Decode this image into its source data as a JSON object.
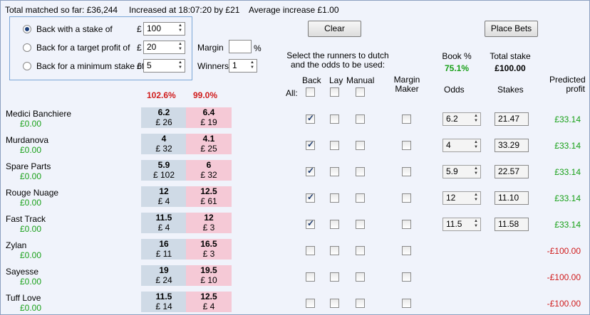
{
  "topbar": {
    "total_matched": "Total matched so far: £36,244",
    "increased": "Increased at 18:07:20 by £21",
    "average": "Average increase £1.00"
  },
  "stake_options": {
    "currency": "£",
    "back_stake": {
      "label": "Back with a stake of",
      "value": "100",
      "selected": true
    },
    "target_profit": {
      "label": "Back for a target profit of",
      "value": "20",
      "selected": false
    },
    "min_stake": {
      "label": "Back for a minimum stake of",
      "value": "5",
      "selected": false
    }
  },
  "margin": {
    "label": "Margin",
    "value": "",
    "unit": "%"
  },
  "winners": {
    "label": "Winners",
    "value": "1"
  },
  "buttons": {
    "clear": "Clear",
    "place_bets": "Place Bets"
  },
  "instructions": {
    "line1": "Select the runners to dutch",
    "line2": "and the odds to be used:"
  },
  "book": {
    "label": "Book %",
    "value": "75.1%"
  },
  "total_stake": {
    "label": "Total stake",
    "value": "£100.00"
  },
  "columns": {
    "all": "All:",
    "back": "Back",
    "lay": "Lay",
    "manual": "Manual",
    "margin_maker_1": "Margin",
    "margin_maker_2": "Maker",
    "odds": "Odds",
    "stakes": "Stakes",
    "predicted_1": "Predicted",
    "predicted_2": "profit"
  },
  "book_percent": {
    "back": "102.6%",
    "lay": "99.0%"
  },
  "runners": [
    {
      "name": "Medici Banchiere",
      "pl": "£0.00",
      "back_odds": "6.2",
      "back_size": "£ 26",
      "lay_odds": "6.4",
      "lay_size": "£ 19",
      "back_checked": true,
      "odds": "6.2",
      "stake": "21.47",
      "profit": "£33.14",
      "positive": true
    },
    {
      "name": "Murdanova",
      "pl": "£0.00",
      "back_odds": "4",
      "back_size": "£ 32",
      "lay_odds": "4.1",
      "lay_size": "£ 25",
      "back_checked": true,
      "odds": "4",
      "stake": "33.29",
      "profit": "£33.14",
      "positive": true
    },
    {
      "name": "Spare Parts",
      "pl": "£0.00",
      "back_odds": "5.9",
      "back_size": "£ 102",
      "lay_odds": "6",
      "lay_size": "£ 32",
      "back_checked": true,
      "odds": "5.9",
      "stake": "22.57",
      "profit": "£33.14",
      "positive": true
    },
    {
      "name": "Rouge Nuage",
      "pl": "£0.00",
      "back_odds": "12",
      "back_size": "£ 4",
      "lay_odds": "12.5",
      "lay_size": "£ 61",
      "back_checked": true,
      "odds": "12",
      "stake": "11.10",
      "profit": "£33.14",
      "positive": true
    },
    {
      "name": "Fast Track",
      "pl": "£0.00",
      "back_odds": "11.5",
      "back_size": "£ 4",
      "lay_odds": "12",
      "lay_size": "£ 3",
      "back_checked": true,
      "odds": "11.5",
      "stake": "11.58",
      "profit": "£33.14",
      "positive": true
    },
    {
      "name": "Zylan",
      "pl": "£0.00",
      "back_odds": "16",
      "back_size": "£ 11",
      "lay_odds": "16.5",
      "lay_size": "£ 3",
      "back_checked": false,
      "odds": "",
      "stake": "",
      "profit": "-£100.00",
      "positive": false
    },
    {
      "name": "Sayesse",
      "pl": "£0.00",
      "back_odds": "19",
      "back_size": "£ 24",
      "lay_odds": "19.5",
      "lay_size": "£ 10",
      "back_checked": false,
      "odds": "",
      "stake": "",
      "profit": "-£100.00",
      "positive": false
    },
    {
      "name": "Tuff Love",
      "pl": "£0.00",
      "back_odds": "11.5",
      "back_size": "£ 14",
      "lay_odds": "12.5",
      "lay_size": "£ 4",
      "back_checked": false,
      "odds": "",
      "stake": "",
      "profit": "-£100.00",
      "positive": false
    }
  ]
}
